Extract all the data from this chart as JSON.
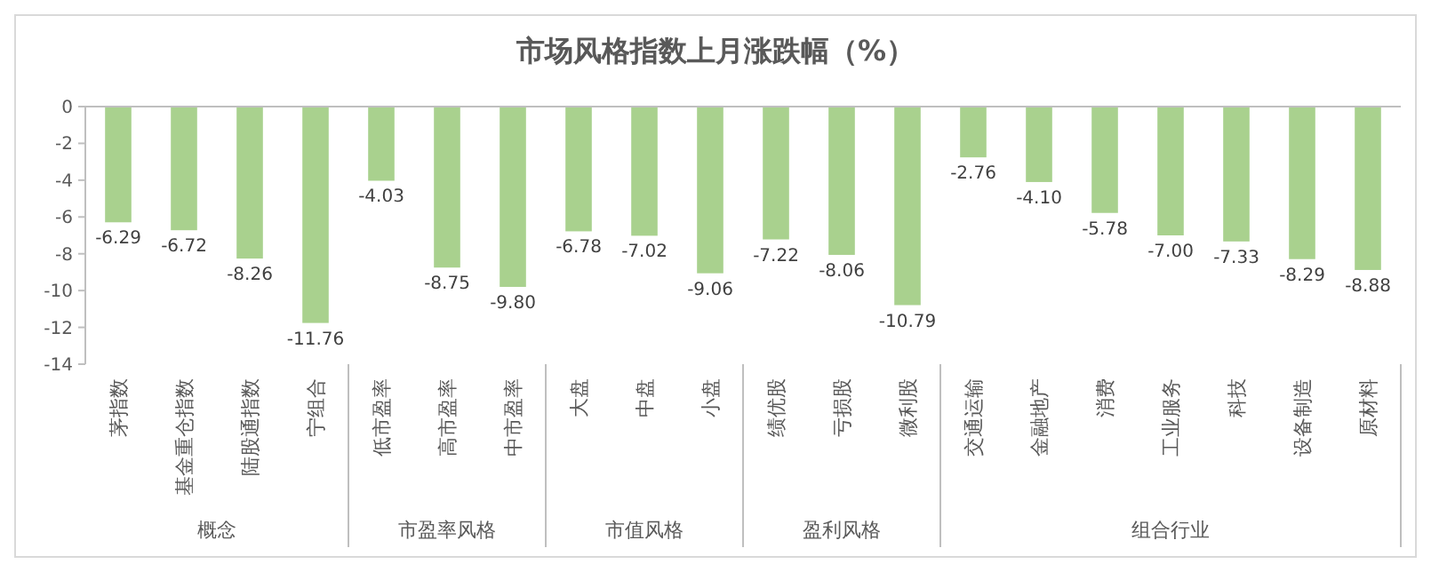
{
  "chart_data": [
    {
      "type": "other",
      "title": "市场风格指数上月涨跌幅（%）"
    },
    {
      "type": "bar",
      "xlabel": "概念",
      "categories": [
        "茅指数",
        "基金重仓指数",
        "陆股通指数",
        "宁组合"
      ],
      "values": [
        -6.29,
        -6.72,
        -8.26,
        -11.76
      ],
      "value_labels": [
        "-6.29",
        "-6.72",
        "-8.26",
        "-11.76"
      ],
      "color": "#a9d18e",
      "ylim": [
        -14,
        0
      ],
      "yticks": [
        0,
        -2,
        -4,
        -6,
        -8,
        -10,
        -12,
        -14
      ]
    },
    {
      "type": "bar",
      "xlabel": "市盈率风格",
      "categories": [
        "低市盈率",
        "高市盈率",
        "中市盈率"
      ],
      "values": [
        -4.03,
        -8.75,
        -9.8
      ],
      "value_labels": [
        "-4.03",
        "-8.75",
        "-9.80"
      ],
      "color": "#a9d18e",
      "ylim": [
        -14,
        0
      ],
      "yticks": [
        0,
        -2,
        -4,
        -6,
        -8,
        -10,
        -12,
        -14
      ],
      "tick_labels": "x"
    },
    {
      "type": "bar",
      "xlabel": "市值风格",
      "categories": [
        "大盘",
        "中盘",
        "小盘"
      ],
      "values": [
        -6.78,
        -7.02,
        -9.06
      ],
      "value_labels": [
        "-6.78",
        "-7.02",
        "-9.06"
      ],
      "color": "#a9d18e",
      "ylim": [
        -14,
        0
      ],
      "yticks": [
        0,
        -2,
        -4,
        -6,
        -8,
        -10,
        -12,
        -14
      ],
      "tick_labels": "x"
    },
    {
      "type": "bar",
      "xlabel": "盈利风格",
      "categories": [
        "绩优股",
        "亏损股",
        "微利股"
      ],
      "values": [
        -7.22,
        -8.06,
        -10.79
      ],
      "value_labels": [
        "-7.22",
        "-8.06",
        "-10.79"
      ],
      "color": "#a9d18e",
      "ylim": [
        -14,
        0
      ],
      "yticks": [
        0,
        -2,
        -4,
        -6,
        -8,
        -10,
        -12,
        -14
      ],
      "tick_labels": "x"
    },
    {
      "type": "bar",
      "xlabel": "组合行业",
      "categories": [
        "交通运输",
        "金融地产",
        "消费",
        "工业服务",
        "科技",
        "设备制造",
        "原材料"
      ],
      "values": [
        -2.76,
        -4.1,
        -5.78,
        -7.0,
        -7.33,
        -8.29,
        -8.88
      ],
      "value_labels": [
        "-2.76",
        "-4.10",
        "-5.78",
        "-7.00",
        "-7.33",
        "-8.29",
        "-8.88"
      ],
      "color": "#a9d18e",
      "ylim": [
        -14,
        0
      ],
      "yticks": [
        0,
        -2,
        -4,
        -6,
        -8,
        -10,
        -12,
        -14
      ],
      "tick_labels": "x"
    }
  ]
}
